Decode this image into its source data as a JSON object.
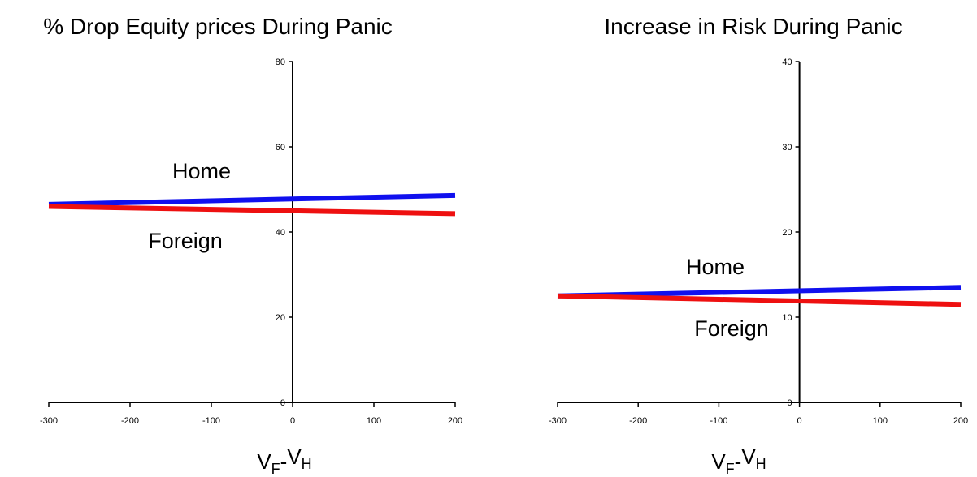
{
  "chart_data": [
    {
      "type": "line",
      "title": "% Drop Equity prices During Panic",
      "xlabel": {
        "main1": "V",
        "sub1": "F",
        "sep": "-",
        "main2": "V",
        "sub2": "H"
      },
      "ylabel": "",
      "xlim": [
        -300,
        200
      ],
      "ylim": [
        0,
        80
      ],
      "xticks": [
        -300,
        -200,
        -100,
        0,
        100,
        200
      ],
      "yticks": [
        0,
        20,
        40,
        60,
        80
      ],
      "grid": false,
      "series": [
        {
          "name": "Home",
          "color": "#1010ee",
          "x": [
            -300,
            200
          ],
          "y": [
            46.5,
            48.6
          ]
        },
        {
          "name": "Foreign",
          "color": "#ee1010",
          "x": [
            -300,
            200
          ],
          "y": [
            46.0,
            44.3
          ]
        }
      ]
    },
    {
      "type": "line",
      "title": "Increase in Risk During Panic",
      "xlabel": {
        "main1": "V",
        "sub1": "F",
        "sep": "-",
        "main2": "V",
        "sub2": "H"
      },
      "ylabel": "",
      "xlim": [
        -300,
        200
      ],
      "ylim": [
        0,
        40
      ],
      "xticks": [
        -300,
        -200,
        -100,
        0,
        100,
        200
      ],
      "yticks": [
        0,
        10,
        20,
        30,
        40
      ],
      "grid": false,
      "series": [
        {
          "name": "Home",
          "color": "#1010ee",
          "x": [
            -300,
            200
          ],
          "y": [
            12.5,
            13.5
          ]
        },
        {
          "name": "Foreign",
          "color": "#ee1010",
          "x": [
            -300,
            200
          ],
          "y": [
            12.5,
            11.5
          ]
        }
      ]
    }
  ]
}
